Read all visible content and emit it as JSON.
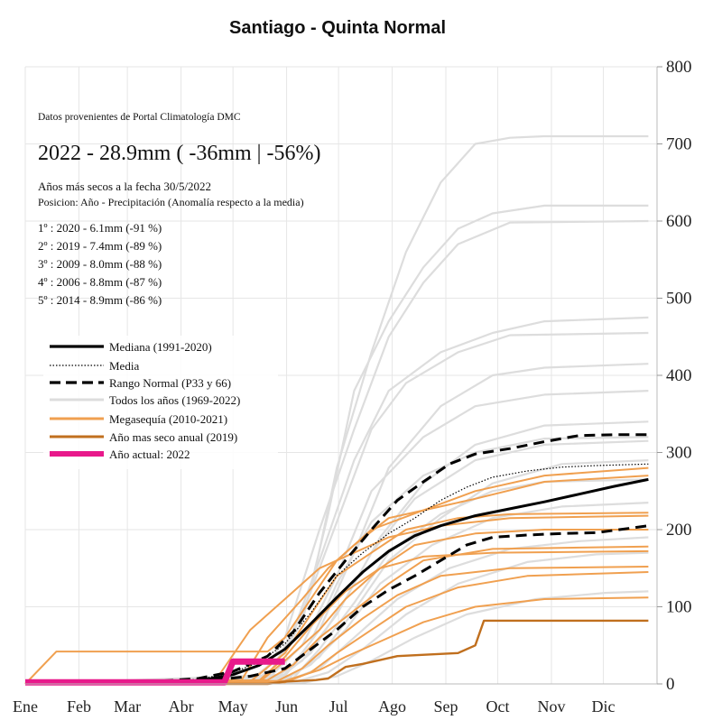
{
  "chart_data": {
    "type": "line",
    "title": "Santiago - Quinta Normal",
    "xlabel": "",
    "ylabel": "",
    "ylim": [
      0,
      800
    ],
    "yticks": [
      0,
      100,
      200,
      300,
      400,
      500,
      600,
      700,
      800
    ],
    "y_axis_side": "right",
    "grid": true,
    "months": [
      "Ene",
      "Feb",
      "Mar",
      "Abr",
      "May",
      "Jun",
      "Jul",
      "Ago",
      "Sep",
      "Oct",
      "Nov",
      "Dic"
    ],
    "x_unit": "day of year",
    "annotations": {
      "source": "Datos provenientes de Portal Climatología DMC",
      "headline": "2022 - 28.9mm ( -36mm |  -56%)",
      "driest_title": "Años más secos a la fecha 30/5/2022",
      "driest_subtitle": "Posicion: Año - Precipitación (Anomalía respecto a la media)",
      "rankings": [
        "1º : 2020 - 6.1mm (-91 %)",
        "2º : 2019 - 7.4mm (-89 %)",
        "3º : 2009 - 8.0mm (-88 %)",
        "4º : 2006 - 8.8mm (-87 %)",
        "5º : 2014 - 8.9mm (-86 %)"
      ]
    },
    "legend": {
      "placement": "left-middle",
      "entries": [
        {
          "label": "Mediana (1991-2020)",
          "color": "#000000",
          "style": "solid-thick"
        },
        {
          "label": "Media",
          "color": "#000000",
          "style": "dotted"
        },
        {
          "label": "Rango Normal (P33 y 66)",
          "color": "#000000",
          "style": "dashed-thick"
        },
        {
          "label": "Todos los años (1969-2022)",
          "color": "#dddddd",
          "style": "solid"
        },
        {
          "label": "Megasequía (2010-2021)",
          "color": "#f0a050",
          "style": "solid"
        },
        {
          "label": "Año mas seco anual (2019)",
          "color": "#c06f1e",
          "style": "solid"
        },
        {
          "label": "Año actual: 2022",
          "color": "#e8198b",
          "style": "solid-thick"
        }
      ]
    },
    "series": [
      {
        "name": "Mediana (1991-2020)",
        "color": "#000000",
        "style": "solid",
        "x": [
          0,
          60,
          100,
          120,
          135,
          150,
          165,
          180,
          195,
          210,
          225,
          240,
          260,
          280,
          300,
          320,
          340,
          360
        ],
        "y": [
          0,
          0,
          4,
          12,
          24,
          45,
          78,
          112,
          145,
          172,
          192,
          205,
          218,
          227,
          236,
          246,
          256,
          265
        ]
      },
      {
        "name": "Media",
        "color": "#000000",
        "style": "dotted",
        "x": [
          0,
          60,
          100,
          120,
          135,
          150,
          165,
          180,
          195,
          210,
          225,
          240,
          255,
          270,
          290,
          310,
          330,
          360
        ],
        "y": [
          0,
          1,
          6,
          15,
          28,
          52,
          92,
          140,
          170,
          195,
          215,
          238,
          255,
          268,
          276,
          281,
          283,
          285
        ]
      },
      {
        "name": "Rango Normal (P33 y 66)",
        "color": "#000000",
        "style": "dashed",
        "x": [
          0,
          60,
          100,
          120,
          140,
          155,
          170,
          185,
          200,
          215,
          230,
          245,
          260,
          280,
          300,
          320,
          340,
          360
        ],
        "y": [
          0,
          1,
          7,
          16,
          36,
          68,
          118,
          160,
          200,
          238,
          262,
          285,
          298,
          305,
          314,
          322,
          323,
          323
        ]
      },
      {
        "name": "Rango Normal (P33 y 66)",
        "color": "#000000",
        "style": "dashed",
        "x": [
          0,
          60,
          100,
          130,
          150,
          165,
          180,
          195,
          210,
          225,
          240,
          255,
          270,
          290,
          310,
          330,
          350,
          360
        ],
        "y": [
          0,
          0,
          3,
          10,
          20,
          45,
          70,
          100,
          122,
          140,
          160,
          180,
          190,
          193,
          195,
          196,
          202,
          205
        ]
      },
      {
        "name": "Año mas seco anual (2019)",
        "color": "#c06f1e",
        "style": "solid",
        "x": [
          0,
          140,
          150,
          168,
          175,
          185,
          195,
          215,
          250,
          260,
          265,
          360
        ],
        "y": [
          0,
          0,
          3,
          5,
          7,
          22,
          26,
          36,
          40,
          50,
          82,
          82
        ]
      },
      {
        "name": "Año actual: 2022",
        "color": "#e8198b",
        "style": "solid-thick",
        "x": [
          0,
          115,
          120,
          150
        ],
        "y": [
          2,
          2,
          29,
          29
        ]
      }
    ],
    "background_series": [
      {
        "x": [
          0,
          130,
          150,
          165,
          180,
          200,
          220,
          240,
          260,
          280,
          300,
          360
        ],
        "y": [
          0,
          5,
          40,
          120,
          280,
          430,
          560,
          650,
          700,
          708,
          710,
          710
        ]
      },
      {
        "x": [
          0,
          140,
          160,
          175,
          190,
          210,
          230,
          250,
          270,
          300,
          360
        ],
        "y": [
          0,
          10,
          80,
          220,
          380,
          470,
          540,
          590,
          610,
          620,
          620
        ]
      },
      {
        "x": [
          0,
          135,
          150,
          170,
          190,
          210,
          230,
          250,
          280,
          360
        ],
        "y": [
          0,
          3,
          60,
          200,
          330,
          450,
          520,
          570,
          598,
          600
        ]
      },
      {
        "x": [
          0,
          130,
          150,
          170,
          190,
          210,
          240,
          270,
          300,
          360
        ],
        "y": [
          0,
          5,
          40,
          160,
          290,
          380,
          430,
          455,
          470,
          475
        ]
      },
      {
        "x": [
          0,
          140,
          160,
          180,
          200,
          220,
          250,
          280,
          360
        ],
        "y": [
          0,
          8,
          90,
          210,
          330,
          390,
          430,
          452,
          455
        ]
      },
      {
        "x": [
          0,
          150,
          170,
          190,
          210,
          240,
          270,
          300,
          360
        ],
        "y": [
          0,
          10,
          70,
          170,
          280,
          360,
          400,
          410,
          415
        ]
      },
      {
        "x": [
          0,
          140,
          160,
          180,
          200,
          230,
          260,
          300,
          360
        ],
        "y": [
          0,
          6,
          50,
          140,
          250,
          320,
          360,
          375,
          380
        ]
      },
      {
        "x": [
          0,
          145,
          165,
          185,
          205,
          230,
          260,
          300,
          360
        ],
        "y": [
          0,
          4,
          40,
          110,
          190,
          260,
          310,
          335,
          340
        ]
      },
      {
        "x": [
          0,
          140,
          160,
          180,
          200,
          225,
          260,
          300,
          360
        ],
        "y": [
          0,
          3,
          30,
          90,
          170,
          240,
          290,
          310,
          315
        ]
      },
      {
        "x": [
          0,
          150,
          170,
          190,
          210,
          240,
          270,
          310,
          360
        ],
        "y": [
          0,
          5,
          35,
          95,
          160,
          215,
          260,
          285,
          290
        ]
      },
      {
        "x": [
          0,
          145,
          165,
          185,
          205,
          235,
          270,
          310,
          360
        ],
        "y": [
          0,
          2,
          25,
          70,
          130,
          180,
          215,
          230,
          235
        ]
      },
      {
        "x": [
          0,
          150,
          170,
          190,
          215,
          245,
          280,
          320,
          360
        ],
        "y": [
          0,
          3,
          20,
          60,
          110,
          150,
          175,
          185,
          190
        ]
      },
      {
        "x": [
          0,
          155,
          175,
          195,
          220,
          250,
          290,
          330,
          360
        ],
        "y": [
          0,
          2,
          15,
          45,
          90,
          130,
          158,
          168,
          170
        ]
      },
      {
        "x": [
          0,
          160,
          180,
          200,
          225,
          255,
          295,
          335,
          360
        ],
        "y": [
          0,
          1,
          10,
          30,
          60,
          90,
          110,
          118,
          120
        ]
      },
      {
        "x": [
          0,
          150,
          165,
          180,
          200,
          230,
          260,
          300,
          360
        ],
        "y": [
          0,
          12,
          55,
          130,
          210,
          270,
          300,
          318,
          320
        ]
      },
      {
        "x": [
          0,
          155,
          170,
          190,
          210,
          240,
          270,
          300,
          360
        ],
        "y": [
          0,
          8,
          45,
          105,
          170,
          220,
          250,
          262,
          265
        ]
      }
    ],
    "megasequia_series": [
      {
        "x": [
          0,
          125,
          140,
          160,
          175,
          190,
          210,
          230,
          260,
          300,
          360
        ],
        "y": [
          0,
          5,
          60,
          110,
          150,
          180,
          215,
          225,
          240,
          262,
          270
        ]
      },
      {
        "x": [
          0,
          130,
          150,
          165,
          180,
          200,
          220,
          250,
          280,
          360
        ],
        "y": [
          0,
          3,
          40,
          90,
          140,
          170,
          200,
          215,
          220,
          222
        ]
      },
      {
        "x": [
          0,
          135,
          150,
          170,
          185,
          205,
          225,
          260,
          300,
          360
        ],
        "y": [
          0,
          2,
          30,
          70,
          110,
          150,
          180,
          195,
          200,
          200
        ]
      },
      {
        "x": [
          0,
          140,
          155,
          170,
          190,
          210,
          230,
          270,
          360
        ],
        "y": [
          0,
          5,
          25,
          60,
          95,
          130,
          160,
          175,
          178
        ]
      },
      {
        "x": [
          0,
          145,
          160,
          175,
          195,
          215,
          240,
          280,
          360
        ],
        "y": [
          0,
          3,
          20,
          50,
          85,
          115,
          140,
          150,
          152
        ]
      },
      {
        "x": [
          0,
          150,
          165,
          180,
          200,
          220,
          250,
          290,
          360
        ],
        "y": [
          0,
          2,
          15,
          40,
          70,
          100,
          125,
          140,
          145
        ]
      },
      {
        "x": [
          0,
          150,
          170,
          185,
          205,
          230,
          260,
          300,
          360
        ],
        "y": [
          0,
          4,
          18,
          35,
          55,
          80,
          100,
          110,
          112
        ]
      },
      {
        "x": [
          0,
          18,
          140,
          150,
          165,
          180,
          200,
          230,
          260,
          300,
          360
        ],
        "y": [
          0,
          42,
          42,
          60,
          110,
          160,
          200,
          225,
          250,
          270,
          280
        ]
      },
      {
        "x": [
          0,
          110,
          130,
          150,
          170,
          190,
          210,
          240,
          280,
          360
        ],
        "y": [
          0,
          5,
          70,
          110,
          150,
          170,
          190,
          205,
          215,
          218
        ]
      },
      {
        "x": [
          0,
          135,
          150,
          165,
          185,
          205,
          230,
          270,
          360
        ],
        "y": [
          0,
          4,
          35,
          75,
          120,
          150,
          165,
          170,
          172
        ]
      }
    ]
  }
}
